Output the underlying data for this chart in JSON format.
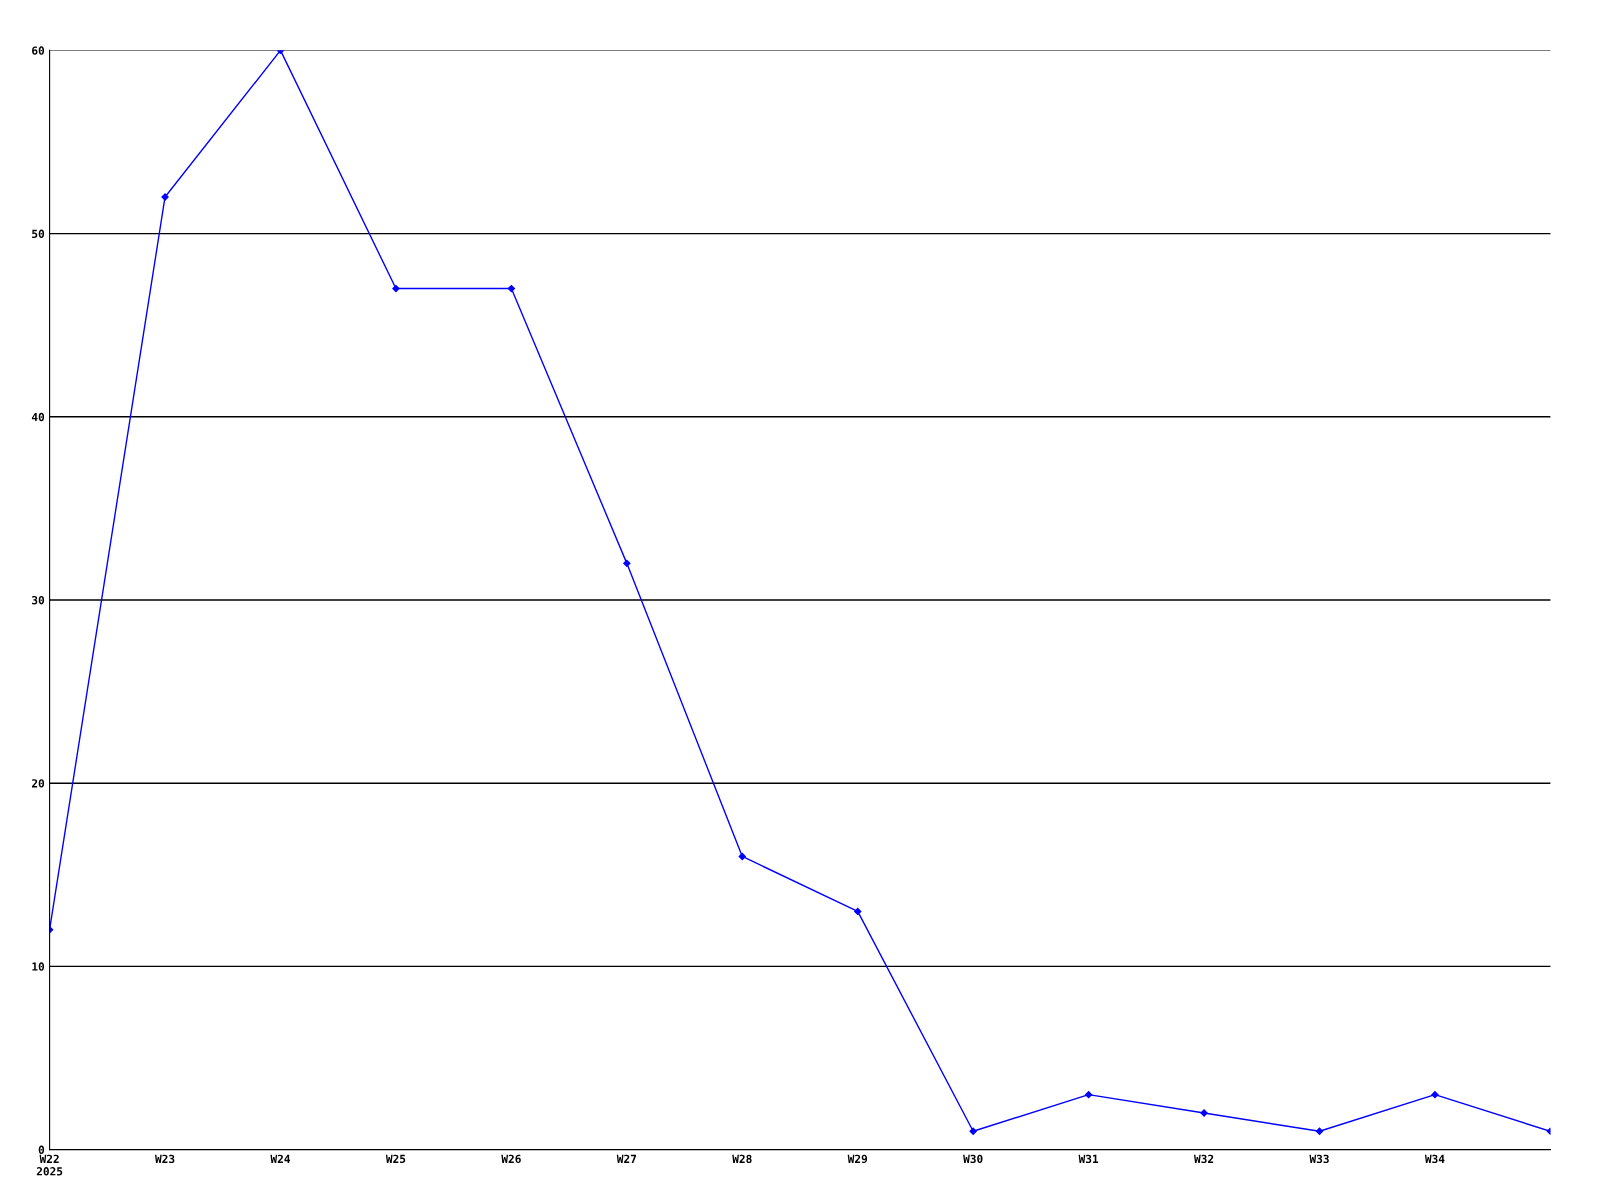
{
  "chart_data": {
    "type": "line",
    "categories": [
      "W22\n2025",
      "W23",
      "W24",
      "W25",
      "W26",
      "W27",
      "W28",
      "W29",
      "W30",
      "W31",
      "W32",
      "W33",
      "W34",
      null
    ],
    "series": [
      {
        "color": "#0000ff",
        "values": [
          12,
          52,
          60,
          47,
          47,
          32,
          16,
          13,
          1,
          3,
          2,
          1,
          3,
          1
        ]
      }
    ],
    "ylim": [
      0,
      60
    ],
    "yticks": [
      0,
      10,
      20,
      30,
      40,
      50,
      60
    ],
    "grid": "y",
    "marker": "diamond",
    "line_style": "solid"
  }
}
